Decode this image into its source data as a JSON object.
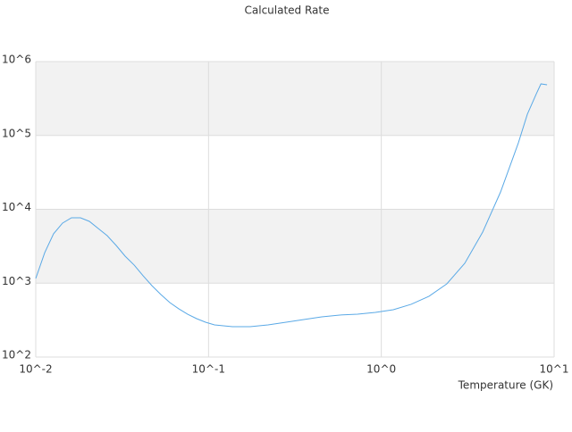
{
  "chart_data": {
    "type": "line",
    "title": "Calculated Rate",
    "x_label": "Temperature (GK)",
    "x_log": true,
    "y_log": true,
    "grid": true,
    "band_color": "#f2f2f2",
    "xlim": [
      0.01,
      10
    ],
    "ylim": [
      100,
      1000000
    ],
    "xticks": [
      {
        "value": 0.01,
        "label": "10^-2"
      },
      {
        "value": 0.1,
        "label": "10^-1"
      },
      {
        "value": 1,
        "label": "10^0"
      },
      {
        "value": 10,
        "label": "10^1"
      }
    ],
    "yticks": [
      {
        "value": 100,
        "label": "10^2"
      },
      {
        "value": 1000,
        "label": "10^3"
      },
      {
        "value": 10000,
        "label": "10^4"
      },
      {
        "value": 100000,
        "label": "10^5"
      },
      {
        "value": 1000000,
        "label": "10^6"
      }
    ],
    "x": [
      0.01,
      0.01127,
      0.01268,
      0.01429,
      0.0161,
      0.01815,
      0.02042,
      0.023,
      0.0259,
      0.0292,
      0.0329,
      0.0371,
      0.0418,
      0.047,
      0.053,
      0.0597,
      0.0672,
      0.0757,
      0.0853,
      0.0961,
      0.1083,
      0.1374,
      0.174,
      0.221,
      0.281,
      0.356,
      0.452,
      0.574,
      0.728,
      0.924,
      1.173,
      1.487,
      1.887,
      2.394,
      3.04,
      3.86,
      4.9,
      6.21,
      7.0,
      7.89,
      8.39,
      9.1
    ],
    "series": [
      {
        "color": "#5aa9e6",
        "values": [
          1157,
          2590,
          4660,
          6500,
          7680,
          7680,
          6870,
          5500,
          4400,
          3240,
          2320,
          1760,
          1260,
          927,
          702,
          546,
          450,
          380,
          331,
          296,
          272,
          258,
          258,
          272,
          296,
          322,
          350,
          370,
          380,
          402,
          437,
          517,
          664,
          980,
          1860,
          4920,
          17200,
          79400,
          194000,
          367000,
          499000,
          485000
        ]
      }
    ]
  }
}
